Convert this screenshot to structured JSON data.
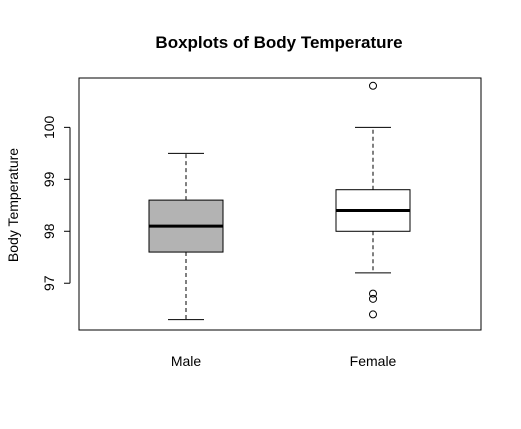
{
  "chart_data": {
    "type": "box",
    "title": "Boxplots of Body Temperature",
    "xlabel": "",
    "ylabel": "Body Temperature",
    "ylim": [
      96.1,
      100.95
    ],
    "yticks": [
      97,
      98,
      99,
      100
    ],
    "grid": false,
    "categories": [
      "Male",
      "Female"
    ],
    "boxes": [
      {
        "category": "Male",
        "whisker_low": 96.3,
        "q1": 97.6,
        "median": 98.1,
        "q3": 98.6,
        "whisker_high": 99.5,
        "outliers": [],
        "fill": "#b3b3b3"
      },
      {
        "category": "Female",
        "whisker_low": 97.2,
        "q1": 98.0,
        "median": 98.4,
        "q3": 98.8,
        "whisker_high": 100.0,
        "outliers": [
          96.4,
          96.7,
          96.8,
          100.8
        ],
        "fill": "#ffffff"
      }
    ]
  }
}
